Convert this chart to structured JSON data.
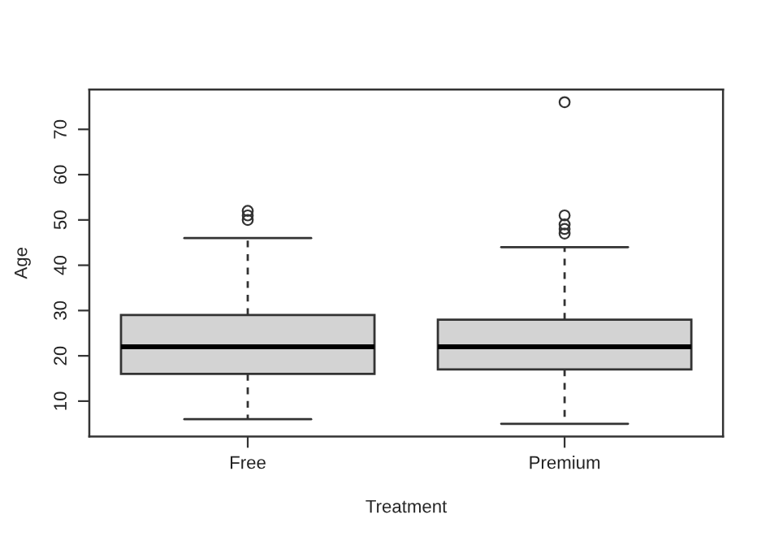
{
  "chart_data": {
    "type": "box",
    "xlabel": "Treatment",
    "ylabel": "Age",
    "categories": [
      "Free",
      "Premium"
    ],
    "boxes": [
      {
        "low": 6,
        "q1": 16,
        "median": 22,
        "q3": 29,
        "high": 46,
        "outliers": [
          50,
          51,
          52
        ]
      },
      {
        "low": 5,
        "q1": 17,
        "median": 22,
        "q3": 28,
        "high": 44,
        "outliers": [
          47,
          48,
          49,
          51,
          76
        ]
      }
    ],
    "color": "#d3d3d3",
    "ylim": [
      2.2,
      78.8
    ],
    "yticks": [
      10,
      20,
      30,
      40,
      50,
      60,
      70
    ],
    "grid": false
  }
}
